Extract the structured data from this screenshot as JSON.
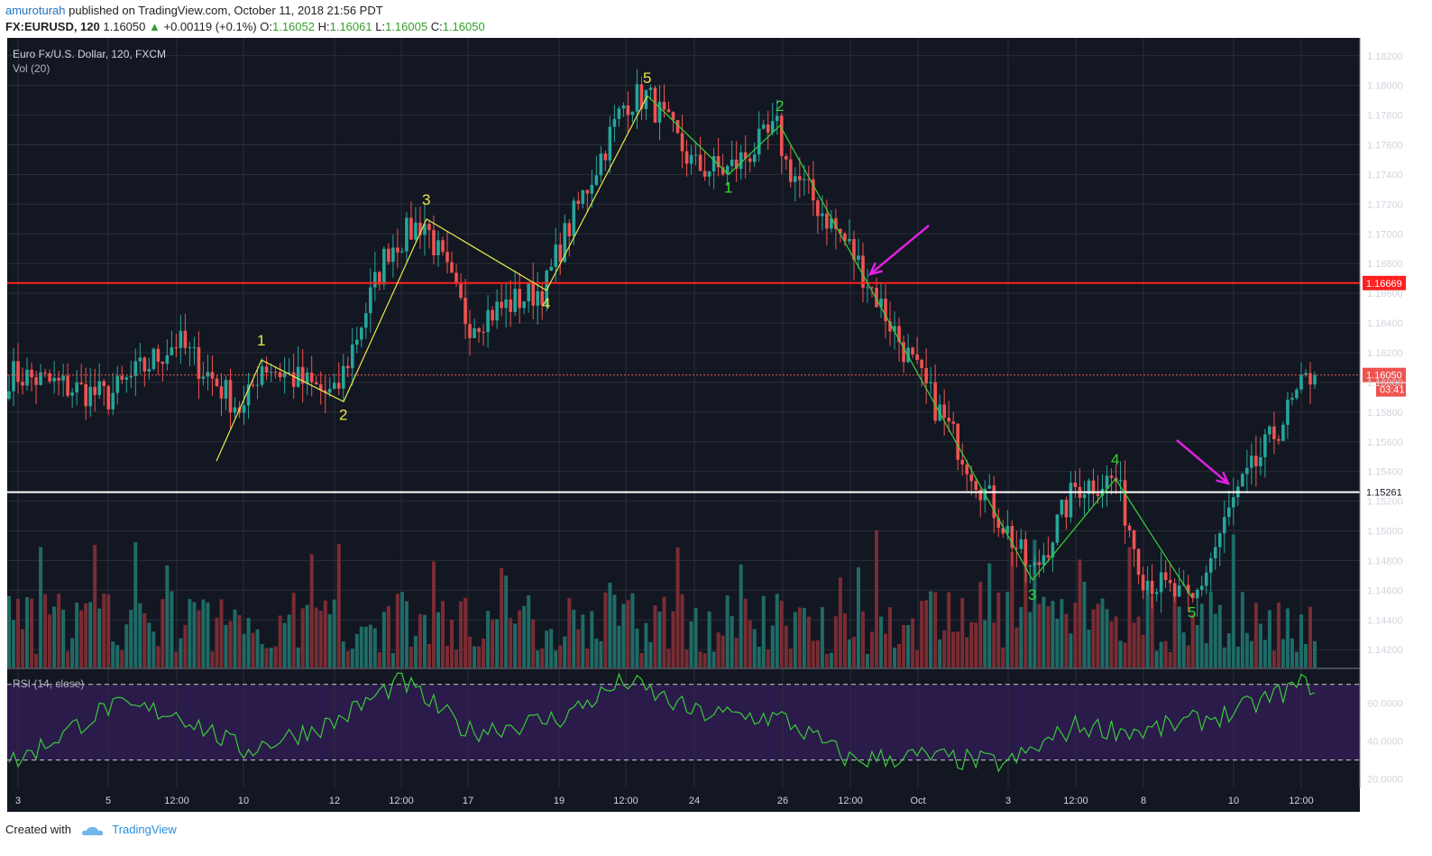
{
  "header": {
    "author": "amuroturah",
    "published_text": "published on TradingView.com, October 11, 2018 21:56 PDT",
    "symbol": "FX:EURUSD, 120",
    "last": "1.16050",
    "change_arrow": "▲",
    "change": "+0.00119 (+0.1%)",
    "o_label": "O:",
    "o_value": "1.16052",
    "h_label": "H:",
    "h_value": "1.16061",
    "l_label": "L:",
    "l_value": "1.16005",
    "c_label": "C:",
    "c_value": "1.16050"
  },
  "legend": {
    "instrument": "Euro Fx/U.S. Dollar, 120, FXCM",
    "volume": "Vol (20)",
    "rsi": "RSI (14, close)"
  },
  "footer": {
    "created_with": "Created with",
    "brand": "TradingView"
  },
  "colors": {
    "background": "#131722",
    "rsi_band": "#2a1b4a",
    "grid": "#2a2e39",
    "up": "#26a69a",
    "down": "#ef5350",
    "vol_up": "#1f6b66",
    "vol_down": "#7a2c33",
    "wave_yellow": "#e8e84a",
    "wave_green": "#37d437",
    "arrow": "#e020e0",
    "resistance": "#ff2020",
    "support": "#ffffff",
    "rsi_line": "#3ac93a"
  },
  "chart_data": [
    {
      "type": "candlestick",
      "title": "Euro Fx/U.S. Dollar, 120, FXCM",
      "ylim": [
        1.1408,
        1.1832
      ],
      "y_ticks": [
        "1.18200",
        "1.18000",
        "1.17800",
        "1.17600",
        "1.17400",
        "1.17200",
        "1.17000",
        "1.16800",
        "1.16600",
        "1.16400",
        "1.16200",
        "1.16000",
        "1.15800",
        "1.15600",
        "1.15400",
        "1.15200",
        "1.15000",
        "1.14800",
        "1.14600",
        "1.14400",
        "1.14200"
      ],
      "x_ticks": [
        "3",
        "5",
        "12:00",
        "10",
        "12",
        "12:00",
        "17",
        "19",
        "12:00",
        "24",
        "26",
        "12:00",
        "Oct",
        "3",
        "12:00",
        "8",
        "10",
        "12:00"
      ],
      "close_path": [
        [
          "3",
          1.1605
        ],
        [
          "5",
          1.159
        ],
        [
          "12:00",
          1.1628
        ],
        [
          "10",
          1.158
        ],
        [
          "1",
          1.1613
        ],
        [
          "12",
          1.159
        ],
        [
          "12:00",
          1.169
        ],
        [
          "3",
          1.1709
        ],
        [
          "17",
          1.164
        ],
        [
          "4",
          1.1664
        ],
        [
          "19",
          1.169
        ],
        [
          "12:00",
          1.179
        ],
        [
          "5",
          1.1793
        ],
        [
          "24",
          1.1745
        ],
        [
          "1",
          1.1743
        ],
        [
          "2",
          1.1772
        ],
        [
          "26",
          1.175
        ],
        [
          "12:00",
          1.169
        ],
        [
          "Oct",
          1.1605
        ],
        [
          "3",
          1.147
        ],
        [
          "12:00",
          1.153
        ],
        [
          "4",
          1.1535
        ],
        [
          "8",
          1.147
        ],
        [
          "5",
          1.145
        ],
        [
          "10",
          1.152
        ],
        [
          "12:00",
          1.1605
        ]
      ],
      "last_price": "1.16050",
      "countdown": "03:41",
      "levels": [
        {
          "name": "resistance",
          "value": "1.16669"
        },
        {
          "name": "support",
          "value": "1.15261"
        }
      ],
      "waves": {
        "yellow": [
          {
            "label": "",
            "x": "5",
            "y": 1.1547
          },
          {
            "label": "1",
            "x": "10",
            "y": 1.1615
          },
          {
            "label": "2",
            "x": "12",
            "y": 1.1587
          },
          {
            "label": "3",
            "x": "12:00",
            "y": 1.171
          },
          {
            "label": "4",
            "x": "19",
            "y": 1.1662
          },
          {
            "label": "5",
            "x": "12:00",
            "y": 1.1793
          }
        ],
        "green": [
          {
            "label": "",
            "x": "12:00",
            "y": 1.1793
          },
          {
            "label": "1",
            "x": "24",
            "y": 1.174
          },
          {
            "label": "2",
            "x": "26",
            "y": 1.1773
          },
          {
            "label": "3",
            "x": "3",
            "y": 1.1467
          },
          {
            "label": "4",
            "x": "12:00",
            "y": 1.1535
          },
          {
            "label": "5",
            "x": "8",
            "y": 1.1455
          }
        ]
      }
    },
    {
      "type": "bar",
      "title": "Vol (20)"
    },
    {
      "type": "line",
      "title": "RSI (14, close)",
      "ylim": [
        15,
        78
      ],
      "y_ticks": [
        "60.0000",
        "40.0000",
        "20.0000"
      ],
      "bands": [
        30,
        70
      ],
      "path": [
        [
          "3",
          30
        ],
        [
          "5",
          58
        ],
        [
          "12:00",
          55
        ],
        [
          "10",
          35
        ],
        [
          "12",
          50
        ],
        [
          "12:00",
          72
        ],
        [
          "17",
          45
        ],
        [
          "19",
          52
        ],
        [
          "12:00",
          72
        ],
        [
          "24",
          55
        ],
        [
          "26",
          52
        ],
        [
          "12:00",
          30
        ],
        [
          "Oct",
          32
        ],
        [
          "3",
          28
        ],
        [
          "12:00",
          48
        ],
        [
          "8",
          45
        ],
        [
          "10",
          55
        ],
        [
          "12:00",
          70
        ]
      ]
    }
  ]
}
